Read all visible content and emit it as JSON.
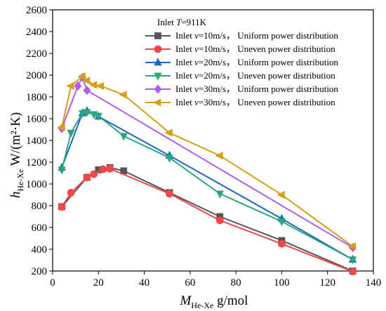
{
  "chart_data": {
    "type": "line",
    "xlabel": {
      "main": "M",
      "sub": "He-Xe",
      "unit": " g/mol"
    },
    "ylabel": {
      "main": "h",
      "sub": "He-Xe",
      "unit": " W/(m²·K)"
    },
    "xlim": [
      0,
      140
    ],
    "ylim": [
      200,
      2600
    ],
    "xticks": [
      0,
      20,
      40,
      60,
      80,
      100,
      120,
      140
    ],
    "yticks": [
      200,
      400,
      600,
      800,
      1000,
      1200,
      1400,
      1600,
      1800,
      2000,
      2200,
      2400,
      2600
    ],
    "grid": false,
    "legend_position": "top-right",
    "legend_title": {
      "prefix": "Inlet ",
      "var": "T",
      "suffix": "=911K"
    },
    "series": [
      {
        "name": {
          "prefix": "Inlet ",
          "var": "v",
          "suffix": "=10m/s， Uniform power distribution"
        },
        "color": "#555555",
        "marker": "square",
        "x": [
          4,
          15,
          20,
          25,
          31,
          51,
          73,
          100,
          131
        ],
        "y": [
          790,
          1060,
          1130,
          1150,
          1120,
          920,
          700,
          480,
          200
        ]
      },
      {
        "name": {
          "prefix": "Inlet ",
          "var": "v",
          "suffix": "=10m/s， Uneven power distribution"
        },
        "color": "#f04848",
        "marker": "circle",
        "x": [
          4,
          8,
          15,
          18,
          22,
          25,
          51,
          73,
          100,
          131
        ],
        "y": [
          790,
          920,
          1060,
          1090,
          1135,
          1140,
          910,
          665,
          450,
          195
        ]
      },
      {
        "name": {
          "prefix": "Inlet ",
          "var": "v",
          "suffix": "=20m/s， Uniform power distribution"
        },
        "color": "#1e64c8",
        "marker": "triangle-up",
        "x": [
          4,
          13,
          15,
          20,
          51,
          100,
          131
        ],
        "y": [
          1150,
          1650,
          1670,
          1620,
          1260,
          680,
          305
        ]
      },
      {
        "name": {
          "prefix": "Inlet ",
          "var": "v",
          "suffix": "=20m/s， Uneven power distribution"
        },
        "color": "#2aa87a",
        "marker": "triangle-down",
        "x": [
          4,
          8,
          13,
          15,
          18,
          20,
          31,
          51,
          73,
          100,
          131
        ],
        "y": [
          1130,
          1470,
          1650,
          1660,
          1640,
          1625,
          1440,
          1240,
          910,
          655,
          305
        ]
      },
      {
        "name": {
          "prefix": "Inlet ",
          "var": "v",
          "suffix": "=30m/s， Uniform power distribution"
        },
        "color": "#b05cf0",
        "marker": "diamond",
        "x": [
          4,
          11,
          13,
          15,
          131
        ],
        "y": [
          1510,
          1900,
          1980,
          1860,
          415
        ]
      },
      {
        "name": {
          "prefix": "Inlet ",
          "var": "v",
          "suffix": "=30m/s， Uneven power distribution"
        },
        "color": "#d4a017",
        "marker": "triangle-left",
        "x": [
          4,
          8,
          13,
          15,
          18,
          21,
          31,
          51,
          73,
          100,
          131
        ],
        "y": [
          1520,
          1900,
          1990,
          1950,
          1910,
          1900,
          1820,
          1470,
          1260,
          900,
          425
        ]
      }
    ]
  }
}
